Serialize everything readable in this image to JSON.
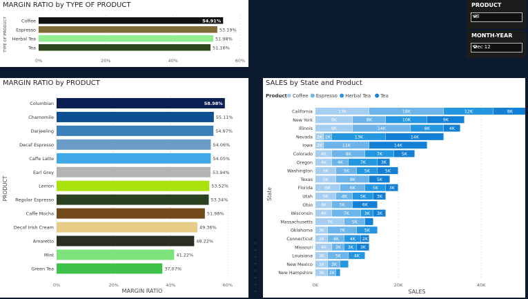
{
  "slicers": {
    "product": {
      "title": "PRODUCT",
      "value": "All"
    },
    "month_year": {
      "title": "MONTH-YEAR",
      "value": "Dec 12"
    }
  },
  "chart_data": [
    {
      "type": "bar",
      "orientation": "horizontal",
      "title": "MARGIN RATIO by TYPE OF PRODUCT",
      "ylabel": "TYPE OF PRODUCT",
      "xlabel": "",
      "xlim": [
        0,
        60
      ],
      "ticks": [
        "0%",
        "20%",
        "40%",
        "60%"
      ],
      "categories": [
        "Coffee",
        "Espresso",
        "Herbal Tea",
        "Tea"
      ],
      "values": [
        54.91,
        53.19,
        51.98,
        51.16
      ],
      "labels": [
        "54.91%",
        "53.19%",
        "51.98%",
        "51.16%"
      ],
      "colors": [
        "#111111",
        "#7e6a35",
        "#90ee90",
        "#2d4a1e"
      ]
    },
    {
      "type": "bar",
      "orientation": "horizontal",
      "title": "MARGIN RATIO by PRODUCT",
      "ylabel": "PRODUCT",
      "xlabel": "MARGIN RATIO",
      "xlim": [
        0,
        60
      ],
      "ticks": [
        "0%",
        "20%",
        "40%",
        "60%"
      ],
      "categories": [
        "Columbian",
        "Chamomile",
        "Darjeeling",
        "Decaf Espresso",
        "Caffe Latte",
        "Earl Grey",
        "Lemon",
        "Regular Espresso",
        "Caffe Mocha",
        "Decaf Irish Cream",
        "Amaretto",
        "Mint",
        "Green Tea"
      ],
      "values": [
        58.98,
        55.11,
        54.97,
        54.06,
        54.05,
        53.94,
        53.52,
        53.34,
        51.98,
        49.36,
        48.22,
        41.22,
        37.07
      ],
      "labels": [
        "58.98%",
        "55.11%",
        "54.97%",
        "54.06%",
        "54.05%",
        "53.94%",
        "53.52%",
        "53.34%",
        "51.98%",
        "49.36%",
        "48.22%",
        "41.22%",
        "37.07%"
      ],
      "colors": [
        "#0b1f52",
        "#0d4f91",
        "#3b80b9",
        "#6b9cc8",
        "#3fa9e8",
        "#b3b3b3",
        "#a8e10c",
        "#2a4220",
        "#734b1b",
        "#e6cc85",
        "#2b2e22",
        "#7ee27c",
        "#3ec24a"
      ]
    },
    {
      "type": "bar",
      "orientation": "horizontal",
      "stacked": true,
      "title": "SALES by State and Product",
      "ylabel": "State",
      "xlabel": "SALES",
      "xlim": [
        0,
        49000
      ],
      "ticks": [
        "0K",
        "20K",
        "40K"
      ],
      "tick_values": [
        0,
        20000,
        40000
      ],
      "legend_title": "Product",
      "legend_position": "top-left",
      "categories": [
        "California",
        "New York",
        "Illinois",
        "Nevada",
        "Iowa",
        "Colorado",
        "Oregon",
        "Washington",
        "Texas",
        "Florida",
        "Utah",
        "Ohio",
        "Wisconsin",
        "Massachusetts",
        "Oklahoma",
        "Connecticut",
        "Missouri",
        "Louisiana",
        "New Mexico",
        "New Hampshire"
      ],
      "series": [
        {
          "name": "Coffee",
          "color": "#a6cef0",
          "values": [
            13000,
            9000,
            9000,
            2000,
            2000,
            4000,
            4000,
            5000,
            5000,
            6000,
            5000,
            4000,
            4000,
            7000,
            3000,
            3000,
            4000,
            3000,
            3000,
            3000
          ],
          "labels": [
            "13K",
            "9K",
            "9K",
            "2K",
            "2K",
            "4K",
            "4K",
            "5K",
            "5K",
            "6K",
            "5K",
            "4K",
            "4K",
            "7K",
            "3K",
            "3K",
            "4K",
            "3K",
            "3K",
            "3K"
          ]
        },
        {
          "name": "Espresso",
          "color": "#6cb4ea",
          "values": [
            18000,
            8000,
            14000,
            2000,
            11000,
            8000,
            4000,
            5000,
            8000,
            6000,
            4000,
            5000,
            7000,
            5000,
            7000,
            4000,
            3000,
            5000,
            3000,
            2000
          ],
          "labels": [
            "18K",
            "8K",
            "14K",
            "2K",
            "11K",
            "8K",
            "4K",
            "5K",
            "8K",
            "6K",
            "4K",
            "5K",
            "7K",
            "5K",
            "7K",
            "4K",
            "3K",
            "5K",
            "3K",
            "2K"
          ]
        },
        {
          "name": "Herbal Tea",
          "color": "#2597e0",
          "values": [
            12000,
            10000,
            8000,
            13000,
            0,
            7000,
            7000,
            5000,
            0,
            5000,
            5000,
            0,
            3000,
            0,
            5000,
            4000,
            3000,
            4000,
            2000,
            1000
          ],
          "labels": [
            "12K",
            "10K",
            "8K",
            "13K",
            "",
            "7K",
            "7K",
            "5K",
            "",
            "5K",
            "5K",
            "",
            "3K",
            "",
            "5K",
            "4K",
            "3K",
            "4K",
            "",
            ""
          ]
        },
        {
          "name": "Tea",
          "color": "#1380d6",
          "values": [
            8000,
            9000,
            4000,
            14000,
            14000,
            5000,
            3000,
            5000,
            5000,
            3000,
            3000,
            6000,
            3000,
            2000,
            0,
            2000,
            3000,
            0,
            0,
            0
          ],
          "labels": [
            "8K",
            "9K",
            "4K",
            "14K",
            "14K",
            "5K",
            "3K",
            "5K",
            "5K",
            "3K",
            "3K",
            "6K",
            "3K",
            "",
            "",
            "2K",
            "3K",
            "",
            "",
            ""
          ]
        }
      ]
    }
  ]
}
